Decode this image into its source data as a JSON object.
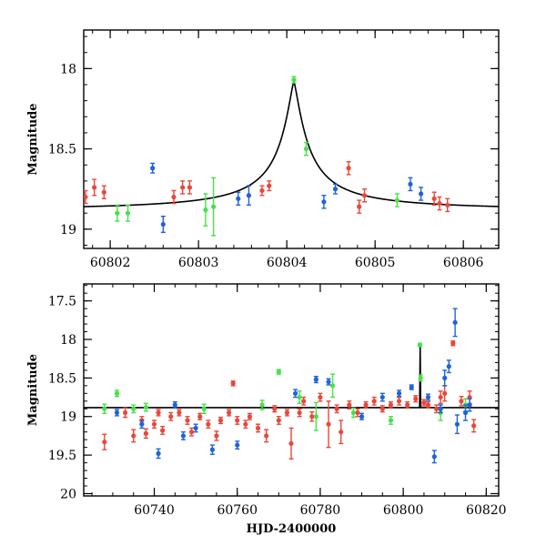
{
  "colors": {
    "red": "#e8483a",
    "green": "#49e04b",
    "blue": "#1f63d8",
    "model": "#000000"
  },
  "chart_data": [
    {
      "type": "scatter",
      "panel": "top",
      "xlabel": "",
      "ylabel": "Magnitude",
      "xlim": [
        60801.7,
        60806.4
      ],
      "ylim": [
        19.12,
        17.76
      ],
      "y_inverted": true,
      "xticks": [
        60802,
        60803,
        60804,
        60805,
        60806
      ],
      "yticks": [
        18,
        18.5,
        19
      ],
      "model": {
        "type": "line",
        "description_values": {
          "baseline": 18.885,
          "peak": 18.08,
          "t0": 60804.08,
          "tau": 0.17
        }
      },
      "series": [
        {
          "color_key": "red",
          "points": [
            [
              60801.72,
              18.8,
              0.04
            ],
            [
              60801.82,
              18.74,
              0.05
            ],
            [
              60801.93,
              18.77,
              0.04
            ],
            [
              60802.72,
              18.8,
              0.04
            ],
            [
              60802.82,
              18.74,
              0.04
            ],
            [
              60802.9,
              18.74,
              0.04
            ],
            [
              60803.72,
              18.76,
              0.03
            ],
            [
              60803.8,
              18.73,
              0.03
            ],
            [
              60804.7,
              18.62,
              0.04
            ],
            [
              60804.82,
              18.86,
              0.04
            ],
            [
              60804.88,
              18.79,
              0.04
            ],
            [
              60805.67,
              18.81,
              0.04
            ],
            [
              60805.73,
              18.84,
              0.04
            ],
            [
              60805.82,
              18.85,
              0.04
            ]
          ]
        },
        {
          "color_key": "green",
          "points": [
            [
              60802.08,
              18.9,
              0.05
            ],
            [
              60802.2,
              18.9,
              0.05
            ],
            [
              60803.08,
              18.88,
              0.1
            ],
            [
              60803.17,
              18.86,
              0.18
            ],
            [
              60804.08,
              18.07,
              0.02
            ],
            [
              60804.22,
              18.5,
              0.04
            ],
            [
              60805.25,
              18.82,
              0.04
            ]
          ]
        },
        {
          "color_key": "blue",
          "points": [
            [
              60802.48,
              18.62,
              0.03
            ],
            [
              60802.6,
              18.97,
              0.05
            ],
            [
              60803.45,
              18.81,
              0.04
            ],
            [
              60803.57,
              18.79,
              0.06
            ],
            [
              60804.42,
              18.83,
              0.04
            ],
            [
              60804.55,
              18.75,
              0.03
            ],
            [
              60805.4,
              18.72,
              0.04
            ],
            [
              60805.52,
              18.78,
              0.04
            ]
          ]
        }
      ]
    },
    {
      "type": "scatter",
      "panel": "bottom",
      "xlabel": "HJD-2400000",
      "ylabel": "Magnitude",
      "xlim": [
        60723,
        60823
      ],
      "ylim": [
        20.03,
        17.28
      ],
      "y_inverted": true,
      "xticks": [
        60740,
        60760,
        60780,
        60800,
        60820
      ],
      "yticks": [
        17.5,
        18,
        18.5,
        19,
        19.5,
        20
      ],
      "model": {
        "type": "line",
        "baseline": 18.885,
        "spike_x": 60804.08,
        "spike_peak": 18.08
      },
      "series": [
        {
          "color_key": "red",
          "points": [
            [
              60728,
              19.33,
              0.1
            ],
            [
              60733,
              18.95,
              0.06
            ],
            [
              60735,
              19.25,
              0.08
            ],
            [
              60737,
              19.05,
              0.05
            ],
            [
              60738,
              19.22,
              0.06
            ],
            [
              60740,
              19.1,
              0.05
            ],
            [
              60741,
              18.95,
              0.04
            ],
            [
              60742,
              19.18,
              0.05
            ],
            [
              60744,
              19.0,
              0.05
            ],
            [
              60746,
              18.95,
              0.04
            ],
            [
              60748,
              19.05,
              0.05
            ],
            [
              60749,
              19.2,
              0.05
            ],
            [
              60751,
              19.0,
              0.04
            ],
            [
              60753,
              19.1,
              0.05
            ],
            [
              60755,
              19.25,
              0.06
            ],
            [
              60756,
              19.05,
              0.04
            ],
            [
              60758,
              18.95,
              0.04
            ],
            [
              60759,
              18.57,
              0.03
            ],
            [
              60760,
              19.05,
              0.05
            ],
            [
              60762,
              19.1,
              0.05
            ],
            [
              60763,
              19.0,
              0.04
            ],
            [
              60765,
              19.15,
              0.05
            ],
            [
              60767,
              19.25,
              0.08
            ],
            [
              60769,
              18.9,
              0.04
            ],
            [
              60770,
              19.05,
              0.05
            ],
            [
              60772,
              18.95,
              0.04
            ],
            [
              60773,
              19.35,
              0.2
            ],
            [
              60775,
              18.95,
              0.05
            ],
            [
              60776,
              18.8,
              0.05
            ],
            [
              60778,
              19.0,
              0.06
            ],
            [
              60780,
              18.75,
              0.05
            ],
            [
              60782,
              19.1,
              0.3
            ],
            [
              60784,
              18.9,
              0.05
            ],
            [
              60785,
              19.2,
              0.15
            ],
            [
              60787,
              18.85,
              0.05
            ],
            [
              60789,
              18.95,
              0.05
            ],
            [
              60791,
              18.85,
              0.04
            ],
            [
              60793,
              18.8,
              0.05
            ],
            [
              60795,
              18.9,
              0.04
            ],
            [
              60797,
              18.85,
              0.04
            ],
            [
              60799,
              18.8,
              0.05
            ],
            [
              60801,
              18.85,
              0.04
            ],
            [
              60803,
              18.77,
              0.04
            ],
            [
              60805,
              18.82,
              0.04
            ],
            [
              60806,
              18.85,
              0.04
            ],
            [
              60808,
              18.9,
              0.05
            ],
            [
              60809,
              18.75,
              0.08
            ],
            [
              60810,
              18.7,
              0.1
            ],
            [
              60812,
              18.05,
              0.03
            ],
            [
              60814,
              18.8,
              0.06
            ],
            [
              60816,
              18.75,
              0.08
            ],
            [
              60817,
              19.12,
              0.08
            ]
          ]
        },
        {
          "color_key": "green",
          "points": [
            [
              60728,
              18.9,
              0.06
            ],
            [
              60731,
              18.7,
              0.04
            ],
            [
              60735,
              18.9,
              0.05
            ],
            [
              60738,
              18.88,
              0.05
            ],
            [
              60752,
              18.9,
              0.06
            ],
            [
              60766,
              18.85,
              0.06
            ],
            [
              60770,
              18.42,
              0.03
            ],
            [
              60775,
              18.75,
              0.08
            ],
            [
              60779,
              19.0,
              0.18
            ],
            [
              60783,
              18.6,
              0.15
            ],
            [
              60788,
              18.95,
              0.06
            ],
            [
              60797,
              19.05,
              0.05
            ],
            [
              60804,
              18.07,
              0.02
            ],
            [
              60804.2,
              18.5,
              0.04
            ],
            [
              60809,
              18.95,
              0.1
            ],
            [
              60815,
              18.85,
              0.08
            ]
          ]
        },
        {
          "color_key": "blue",
          "points": [
            [
              60731,
              18.95,
              0.04
            ],
            [
              60737,
              19.1,
              0.05
            ],
            [
              60741,
              19.48,
              0.06
            ],
            [
              60745,
              18.85,
              0.04
            ],
            [
              60747,
              19.25,
              0.05
            ],
            [
              60750,
              19.15,
              0.05
            ],
            [
              60754,
              19.43,
              0.06
            ],
            [
              60760,
              19.37,
              0.05
            ],
            [
              60774,
              18.7,
              0.05
            ],
            [
              60779,
              18.52,
              0.04
            ],
            [
              60782,
              18.55,
              0.04
            ],
            [
              60790,
              19.0,
              0.04
            ],
            [
              60795,
              18.75,
              0.05
            ],
            [
              60799,
              18.7,
              0.04
            ],
            [
              60802,
              18.62,
              0.03
            ],
            [
              60806,
              18.75,
              0.04
            ],
            [
              60807.5,
              19.52,
              0.08
            ],
            [
              60809,
              18.9,
              0.05
            ],
            [
              60810,
              18.5,
              0.1
            ],
            [
              60811,
              18.35,
              0.08
            ],
            [
              60812.5,
              17.78,
              0.18
            ],
            [
              60813,
              19.1,
              0.12
            ],
            [
              60815,
              18.95,
              0.1
            ],
            [
              60816,
              18.85,
              0.08
            ]
          ]
        }
      ]
    }
  ]
}
